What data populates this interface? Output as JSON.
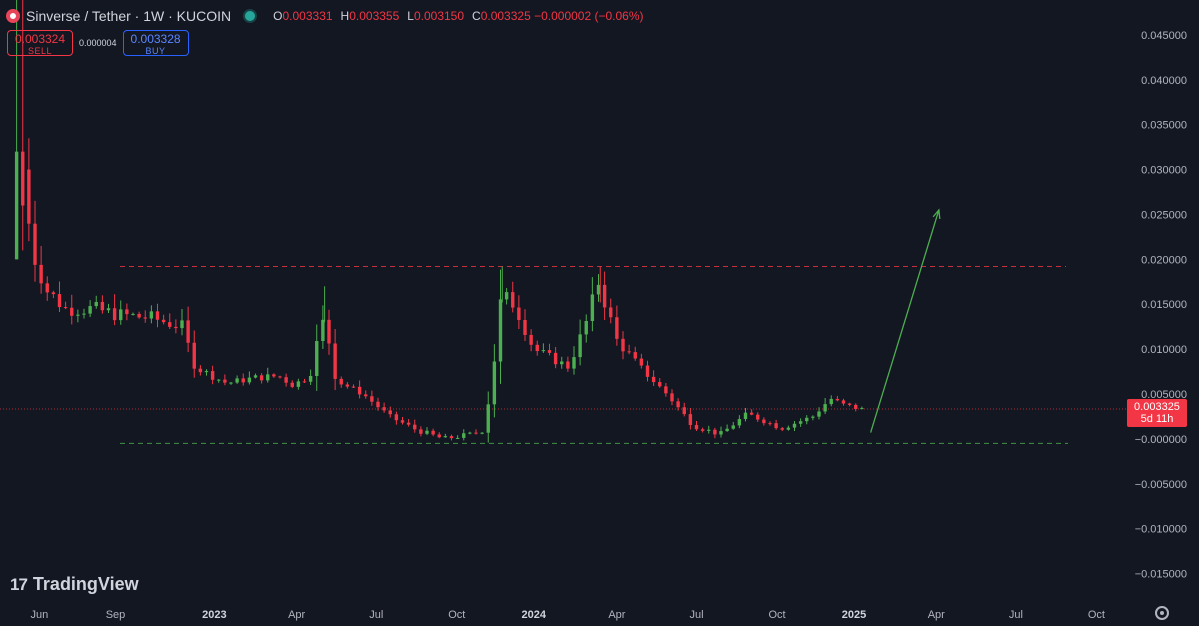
{
  "header": {
    "title": "Sinverse / Tether · 1W · KUCOIN",
    "ohlc": [
      {
        "k": "O",
        "v": "0.003331"
      },
      {
        "k": "H",
        "v": "0.003355"
      },
      {
        "k": "L",
        "v": "0.003150"
      },
      {
        "k": "C",
        "v": "0.003325 −0.000002 (−0.06%)"
      }
    ]
  },
  "trade": {
    "sell_price": "0.003324",
    "sell_label": "SELL",
    "spread": "0.000004",
    "buy_price": "0.003328",
    "buy_label": "BUY"
  },
  "brand": "TradingView",
  "price_tag": {
    "price": "0.003325",
    "countdown": "5d 11h"
  },
  "colors": {
    "background": "#131722",
    "up": "#4caf50",
    "down": "#f23645",
    "resistance": "#f23645",
    "support": "#4caf50",
    "arrow": "#4caf50"
  },
  "chart_data": {
    "type": "candlestick",
    "y_ticks": [
      "0.045000",
      "0.040000",
      "0.035000",
      "0.030000",
      "0.025000",
      "0.020000",
      "0.015000",
      "0.010000",
      "0.005000",
      "−0.000000",
      "−0.005000",
      "−0.010000",
      "−0.015000"
    ],
    "x_ticks": [
      "Jun",
      "Sep",
      "2023",
      "Apr",
      "Jul",
      "Oct",
      "2024",
      "Apr",
      "Jul",
      "Oct",
      "2025",
      "Apr",
      "Jul",
      "Oct"
    ],
    "ylim": [
      -0.0175,
      0.048
    ],
    "x_range": [
      "2022-05-01",
      "2025-11-01"
    ],
    "resistance_level": 0.0192,
    "support_level": -0.0005,
    "projection_arrow": {
      "from": [
        "2025-01-20",
        0.0007
      ],
      "to": [
        "2025-04-08",
        0.0255
      ]
    },
    "waypoints": [
      [
        "2022-05-20",
        0.03
      ],
      [
        "2022-05-27",
        0.026
      ],
      [
        "2022-06-03",
        0.024
      ],
      [
        "2022-06-10",
        0.02
      ],
      [
        "2022-06-24",
        0.0165
      ],
      [
        "2022-07-15",
        0.0145
      ],
      [
        "2022-08-15",
        0.0145
      ],
      [
        "2022-09-15",
        0.0138
      ],
      [
        "2022-10-20",
        0.0135
      ],
      [
        "2022-11-25",
        0.0125
      ],
      [
        "2022-12-10",
        0.008
      ],
      [
        "2023-01-15",
        0.0062
      ],
      [
        "2023-02-15",
        0.0068
      ],
      [
        "2023-03-15",
        0.007
      ],
      [
        "2023-04-01",
        0.006
      ],
      [
        "2023-04-20",
        0.007
      ],
      [
        "2023-04-30",
        0.0115
      ],
      [
        "2023-05-07",
        0.0135
      ],
      [
        "2023-05-20",
        0.0065
      ],
      [
        "2023-06-20",
        0.005
      ],
      [
        "2023-07-20",
        0.0025
      ],
      [
        "2023-08-20",
        0.001
      ],
      [
        "2023-09-20",
        0.0
      ],
      [
        "2023-10-20",
        0.0005
      ],
      [
        "2023-11-05",
        0.001
      ],
      [
        "2023-11-15",
        0.007
      ],
      [
        "2023-11-25",
        0.016
      ],
      [
        "2023-12-10",
        0.015
      ],
      [
        "2024-01-01",
        0.01
      ],
      [
        "2024-02-10",
        0.008
      ],
      [
        "2024-03-01",
        0.013
      ],
      [
        "2024-03-15",
        0.0175
      ],
      [
        "2024-04-05",
        0.011
      ],
      [
        "2024-05-01",
        0.008
      ],
      [
        "2024-06-01",
        0.005
      ],
      [
        "2024-07-01",
        0.0015
      ],
      [
        "2024-08-01",
        0.0005
      ],
      [
        "2024-09-01",
        0.0028
      ],
      [
        "2024-10-10",
        0.0012
      ],
      [
        "2024-11-15",
        0.0025
      ],
      [
        "2024-12-05",
        0.0045
      ],
      [
        "2024-12-20",
        0.0038
      ],
      [
        "2025-01-10",
        0.0033
      ]
    ]
  }
}
